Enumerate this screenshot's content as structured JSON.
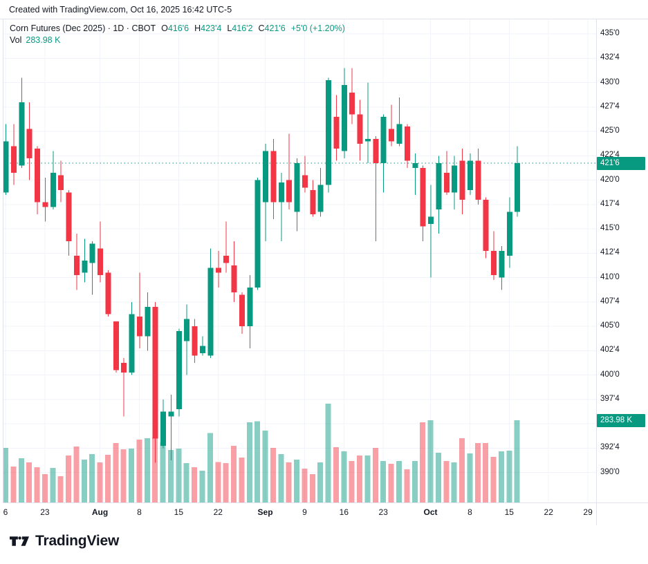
{
  "attribution": "Created with TradingView.com, Oct 16, 2025 16:42 UTC-5",
  "legend": {
    "title": "Corn Futures (Dec 2025) · 1D · CBOT",
    "open_label": "O",
    "open": "416'6",
    "high_label": "H",
    "high": "423'4",
    "low_label": "L",
    "low": "416'2",
    "close_label": "C",
    "close": "421'6",
    "change": "+5'0 (+1.20%)",
    "volume_label": "Vol",
    "volume_value": "283.98 K"
  },
  "price_axis": {
    "labels": [
      {
        "text": "435'0",
        "price": 435.0
      },
      {
        "text": "432'4",
        "price": 432.5
      },
      {
        "text": "430'0",
        "price": 430.0
      },
      {
        "text": "427'4",
        "price": 427.5
      },
      {
        "text": "425'0",
        "price": 425.0
      },
      {
        "text": "422'4",
        "price": 422.5
      },
      {
        "text": "420'0",
        "price": 420.0
      },
      {
        "text": "417'4",
        "price": 417.5
      },
      {
        "text": "415'0",
        "price": 415.0
      },
      {
        "text": "412'4",
        "price": 412.5
      },
      {
        "text": "410'0",
        "price": 410.0
      },
      {
        "text": "407'4",
        "price": 407.5
      },
      {
        "text": "405'0",
        "price": 405.0
      },
      {
        "text": "402'4",
        "price": 402.5
      },
      {
        "text": "400'0",
        "price": 400.0
      },
      {
        "text": "397'4",
        "price": 397.5
      },
      {
        "text": "395'0",
        "price": 395.0
      },
      {
        "text": "392'4",
        "price": 392.5
      },
      {
        "text": "390'0",
        "price": 390.0
      }
    ],
    "price_badge": "421'6",
    "volume_badge": "283.98 K"
  },
  "time_axis": {
    "ticks": [
      {
        "label": "6",
        "i": 0,
        "bold": false
      },
      {
        "label": "23",
        "i": 5,
        "bold": false
      },
      {
        "label": "Aug",
        "i": 12,
        "bold": true
      },
      {
        "label": "8",
        "i": 17,
        "bold": false
      },
      {
        "label": "15",
        "i": 22,
        "bold": false
      },
      {
        "label": "22",
        "i": 27,
        "bold": false
      },
      {
        "label": "Sep",
        "i": 33,
        "bold": true
      },
      {
        "label": "9",
        "i": 38,
        "bold": false
      },
      {
        "label": "16",
        "i": 43,
        "bold": false
      },
      {
        "label": "23",
        "i": 48,
        "bold": false
      },
      {
        "label": "Oct",
        "i": 54,
        "bold": true
      },
      {
        "label": "8",
        "i": 59,
        "bold": false
      },
      {
        "label": "15",
        "i": 64,
        "bold": false
      },
      {
        "label": "22",
        "i": 69,
        "bold": false
      },
      {
        "label": "29",
        "i": 74,
        "bold": false
      }
    ]
  },
  "footer": {
    "brand": "TradingView"
  },
  "colors": {
    "up": "#089981",
    "down": "#F23645",
    "volume_up": "rgba(8,153,129,0.48)",
    "volume_down": "rgba(242,54,69,0.48)",
    "price_line": "#089981",
    "badge_bg": "#089981",
    "grid": "#F0F3FA",
    "axis_border": "#E0E3EB"
  },
  "chart_data": {
    "type": "candlestick_with_volume",
    "symbol": "Corn Futures (Dec 2025)",
    "interval": "1D",
    "exchange": "CBOT",
    "last_bar": {
      "open": "416'6",
      "high": "423'4",
      "low": "416'2",
      "close": "421'6",
      "change": "+5'0",
      "change_pct": "+1.20%",
      "volume": "283.98 K"
    },
    "price_line_value": 421.75,
    "ylim": [
      388.5,
      436.5
    ],
    "grid": true,
    "volume_unit": "K",
    "columns": [
      "open",
      "high",
      "low",
      "close",
      "volume_k"
    ],
    "candles": [
      [
        418.75,
        425.75,
        418.5,
        424.0,
        189
      ],
      [
        423.5,
        425.75,
        419.5,
        420.75,
        124
      ],
      [
        421.5,
        430.5,
        421.25,
        428.0,
        153
      ],
      [
        425.25,
        428.0,
        420.0,
        422.25,
        138
      ],
      [
        423.25,
        423.5,
        416.5,
        417.75,
        122
      ],
      [
        417.75,
        420.25,
        415.75,
        417.25,
        98
      ],
      [
        417.25,
        423.0,
        417.0,
        420.75,
        119
      ],
      [
        420.5,
        422.0,
        417.75,
        419.0,
        91
      ],
      [
        418.75,
        419.0,
        412.25,
        413.75,
        162
      ],
      [
        412.25,
        414.5,
        408.75,
        410.25,
        193
      ],
      [
        410.5,
        414.0,
        409.5,
        411.75,
        148
      ],
      [
        411.5,
        413.75,
        408.25,
        413.5,
        167
      ],
      [
        413.0,
        415.75,
        409.5,
        410.25,
        138
      ],
      [
        410.5,
        410.75,
        406.0,
        406.25,
        165
      ],
      [
        405.5,
        405.5,
        400.25,
        400.5,
        205
      ],
      [
        401.25,
        401.75,
        395.75,
        400.25,
        184
      ],
      [
        400.25,
        407.5,
        400.0,
        406.25,
        186
      ],
      [
        406.0,
        410.5,
        402.75,
        404.0,
        217
      ],
      [
        404.0,
        408.5,
        402.5,
        407.0,
        222
      ],
      [
        407.0,
        407.5,
        391.0,
        393.5,
        224
      ],
      [
        392.75,
        397.5,
        392.5,
        396.25,
        208
      ],
      [
        395.75,
        398.0,
        391.25,
        396.25,
        181
      ],
      [
        396.5,
        404.75,
        395.75,
        404.5,
        186
      ],
      [
        403.5,
        407.25,
        400.0,
        405.75,
        136
      ],
      [
        405.0,
        405.75,
        401.25,
        402.0,
        122
      ],
      [
        402.25,
        404.0,
        402.0,
        403.0,
        110
      ],
      [
        402.0,
        413.0,
        401.75,
        411.0,
        240
      ],
      [
        411.0,
        412.75,
        409.0,
        410.5,
        140
      ],
      [
        412.25,
        415.75,
        410.5,
        411.5,
        136
      ],
      [
        411.25,
        413.75,
        407.5,
        408.5,
        196
      ],
      [
        408.25,
        408.5,
        404.25,
        405.0,
        155
      ],
      [
        405.0,
        410.25,
        402.75,
        409.0,
        277
      ],
      [
        409.0,
        420.25,
        408.75,
        420.0,
        280
      ],
      [
        417.75,
        423.75,
        413.75,
        423.0,
        248
      ],
      [
        423.0,
        424.25,
        416.0,
        417.75,
        189
      ],
      [
        417.75,
        420.75,
        413.75,
        419.75,
        167
      ],
      [
        420.0,
        424.75,
        417.0,
        417.75,
        138
      ],
      [
        416.75,
        422.25,
        414.75,
        421.75,
        148
      ],
      [
        420.5,
        422.5,
        418.75,
        419.25,
        117
      ],
      [
        419.0,
        420.0,
        416.25,
        416.5,
        98
      ],
      [
        416.75,
        421.25,
        416.25,
        419.5,
        138
      ],
      [
        419.5,
        430.5,
        418.75,
        430.25,
        341
      ],
      [
        426.5,
        428.75,
        422.0,
        423.25,
        191
      ],
      [
        423.0,
        431.5,
        422.25,
        429.75,
        177
      ],
      [
        429.0,
        431.5,
        425.75,
        426.75,
        143
      ],
      [
        426.75,
        428.25,
        422.0,
        423.75,
        162
      ],
      [
        424.0,
        430.0,
        421.75,
        424.25,
        162
      ],
      [
        424.25,
        424.5,
        413.75,
        421.75,
        189
      ],
      [
        421.75,
        426.75,
        418.75,
        426.5,
        143
      ],
      [
        425.25,
        427.75,
        423.5,
        424.0,
        134
      ],
      [
        423.75,
        428.5,
        423.5,
        425.75,
        143
      ],
      [
        425.5,
        425.75,
        421.25,
        422.0,
        115
      ],
      [
        421.25,
        422.75,
        418.5,
        421.75,
        143
      ],
      [
        421.25,
        421.5,
        413.75,
        415.25,
        277
      ],
      [
        415.5,
        419.5,
        410.0,
        416.25,
        284
      ],
      [
        417.0,
        422.5,
        414.5,
        421.75,
        172
      ],
      [
        420.75,
        423.0,
        418.5,
        418.75,
        143
      ],
      [
        418.75,
        422.5,
        417.0,
        421.5,
        138
      ],
      [
        422.0,
        423.25,
        416.5,
        418.0,
        222
      ],
      [
        419.0,
        422.75,
        418.5,
        422.0,
        170
      ],
      [
        422.0,
        423.25,
        417.5,
        418.0,
        205
      ],
      [
        418.0,
        418.25,
        412.0,
        412.75,
        205
      ],
      [
        412.75,
        414.75,
        409.75,
        410.25,
        158
      ],
      [
        410.0,
        413.25,
        408.75,
        412.75,
        177
      ],
      [
        412.25,
        418.25,
        411.0,
        416.75,
        179
      ],
      [
        416.75,
        423.5,
        416.25,
        421.75,
        283.98
      ]
    ]
  }
}
